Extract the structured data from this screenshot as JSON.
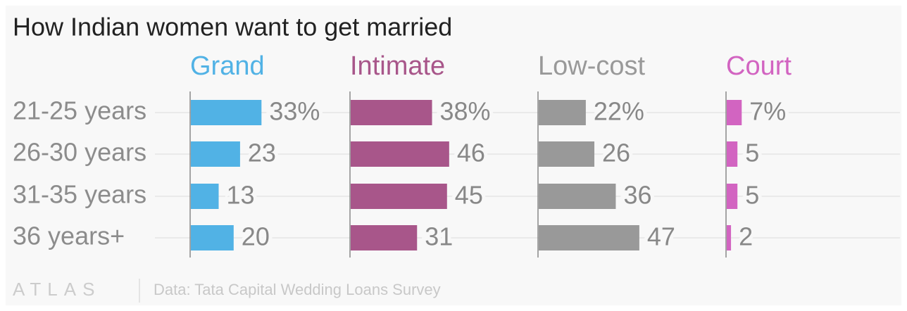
{
  "chart_data": {
    "type": "bar",
    "title": "How Indian women want to get married",
    "categories": [
      "21-25 years",
      "26-30 years",
      "31-35 years",
      "36 years+"
    ],
    "series": [
      {
        "name": "Grand",
        "color": "#51b2e5",
        "values": [
          33,
          23,
          13,
          20
        ],
        "value_labels": [
          "33%",
          "23",
          "13",
          "20"
        ]
      },
      {
        "name": "Intimate",
        "color": "#a8568a",
        "values": [
          38,
          46,
          45,
          31
        ],
        "value_labels": [
          "38%",
          "46",
          "45",
          "31"
        ]
      },
      {
        "name": "Low-cost",
        "color": "#999999",
        "values": [
          22,
          26,
          36,
          47
        ],
        "value_labels": [
          "22%",
          "26",
          "36",
          "47"
        ]
      },
      {
        "name": "Court",
        "color": "#d264c1",
        "values": [
          7,
          5,
          5,
          2
        ],
        "value_labels": [
          "7%",
          "5",
          "5",
          "2"
        ]
      }
    ],
    "footer": {
      "logo": "ATLAS",
      "source": "Data: Tata Capital Wedding Loans Survey"
    }
  }
}
